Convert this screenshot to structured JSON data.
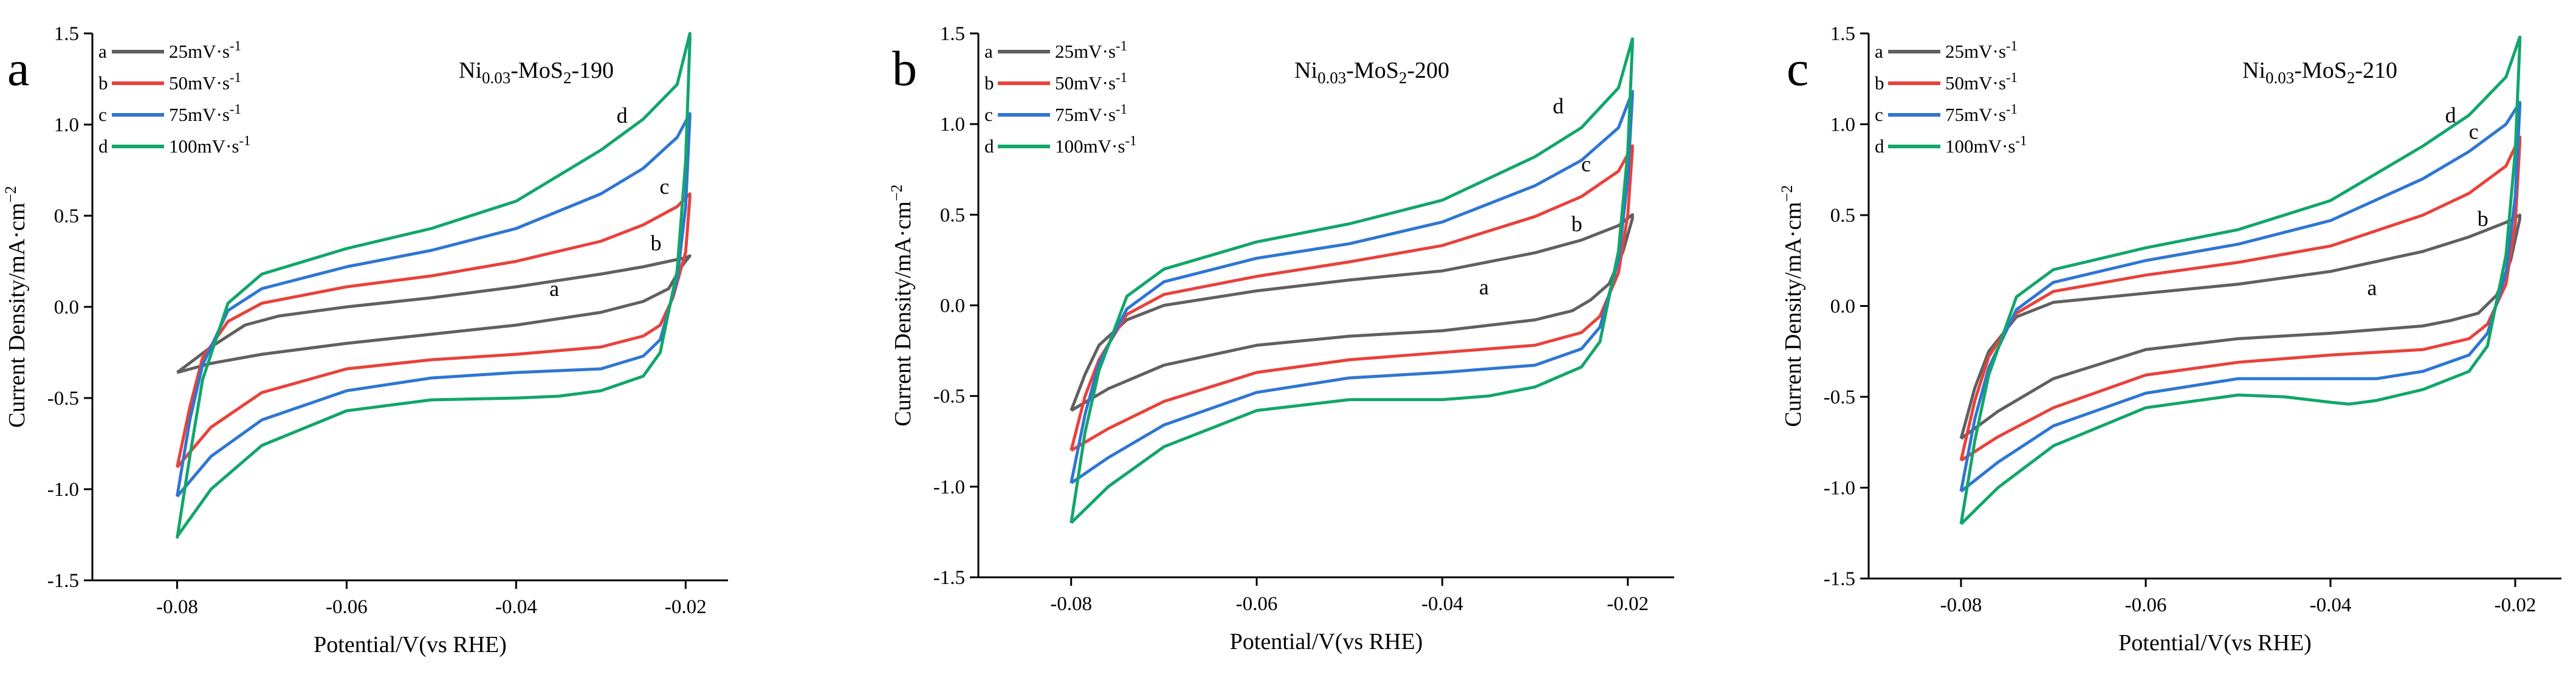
{
  "chart_data": [
    {
      "panel": "a",
      "type": "line",
      "title": {
        "main": "Ni",
        "sub": "0.03",
        "mid": "-MoS",
        "sub2": "2",
        "tail": "-190"
      },
      "xlabel": "Potential/V(vs RHE)",
      "ylabel": "Current Density/mA·cm",
      "ylabel_sup": "−2",
      "xlim": [
        -0.09,
        -0.015
      ],
      "ylim": [
        -1.5,
        1.5
      ],
      "xticks": [
        -0.08,
        -0.06,
        -0.04,
        -0.02
      ],
      "xtick_labels": [
        "-0.08",
        "-0.06",
        "-0.04",
        "-0.02"
      ],
      "yticks": [
        -1.5,
        -1.0,
        -0.5,
        0.0,
        0.5,
        1.0,
        1.5
      ],
      "ytick_labels": [
        "-1.5",
        "-1.0",
        "-0.5",
        "0.0",
        "0.5",
        "1.0",
        "1.5"
      ],
      "legend": {
        "position": "top-left"
      },
      "series": [
        {
          "name": "25mV·s",
          "sup": "-1",
          "letter": "a",
          "color": "#606060",
          "top": [
            -0.08,
            -0.36,
            -0.078,
            -0.29,
            -0.076,
            -0.22,
            -0.072,
            -0.1,
            -0.068,
            -0.05,
            -0.06,
            0.0,
            -0.05,
            0.05,
            -0.04,
            0.11,
            -0.03,
            0.18,
            -0.025,
            0.22,
            -0.02,
            0.27
          ],
          "bottom": [
            -0.0195,
            0.28,
            -0.0205,
            0.22,
            -0.022,
            0.1,
            -0.025,
            0.03,
            -0.03,
            -0.03,
            -0.04,
            -0.1,
            -0.05,
            -0.15,
            -0.06,
            -0.2,
            -0.07,
            -0.26,
            -0.076,
            -0.31,
            -0.08,
            -0.36
          ],
          "label_at": [
            -0.0355,
            0.1
          ]
        },
        {
          "name": "50mV·s",
          "sup": "-1",
          "letter": "b",
          "color": "#e8423c",
          "top": [
            -0.08,
            -0.88,
            -0.0785,
            -0.55,
            -0.077,
            -0.28,
            -0.074,
            -0.08,
            -0.07,
            0.02,
            -0.06,
            0.11,
            -0.05,
            0.17,
            -0.04,
            0.25,
            -0.03,
            0.36,
            -0.025,
            0.45,
            -0.021,
            0.55,
            -0.0195,
            0.62
          ],
          "bottom": [
            -0.0195,
            0.6,
            -0.02,
            0.3,
            -0.0215,
            0.05,
            -0.023,
            -0.1,
            -0.025,
            -0.16,
            -0.03,
            -0.22,
            -0.04,
            -0.26,
            -0.05,
            -0.29,
            -0.06,
            -0.34,
            -0.07,
            -0.47,
            -0.076,
            -0.66,
            -0.08,
            -0.88
          ],
          "label_at": [
            -0.0235,
            0.35
          ]
        },
        {
          "name": "75mV·s",
          "sup": "-1",
          "letter": "c",
          "color": "#2f76d2",
          "top": [
            -0.08,
            -1.04,
            -0.0785,
            -0.62,
            -0.077,
            -0.32,
            -0.074,
            -0.02,
            -0.07,
            0.1,
            -0.06,
            0.22,
            -0.05,
            0.31,
            -0.04,
            0.43,
            -0.03,
            0.62,
            -0.025,
            0.76,
            -0.021,
            0.93,
            -0.0195,
            1.06
          ],
          "bottom": [
            -0.0195,
            1.04,
            -0.02,
            0.55,
            -0.021,
            0.15,
            -0.023,
            -0.18,
            -0.025,
            -0.27,
            -0.03,
            -0.34,
            -0.04,
            -0.36,
            -0.05,
            -0.39,
            -0.06,
            -0.46,
            -0.07,
            -0.62,
            -0.076,
            -0.82,
            -0.08,
            -1.04
          ],
          "label_at": [
            -0.0225,
            0.66
          ]
        },
        {
          "name": "100mV·s",
          "sup": "-1",
          "letter": "d",
          "color": "#12a66a",
          "top": [
            -0.08,
            -1.27,
            -0.0785,
            -0.82,
            -0.077,
            -0.4,
            -0.074,
            0.02,
            -0.07,
            0.18,
            -0.06,
            0.32,
            -0.05,
            0.43,
            -0.04,
            0.58,
            -0.03,
            0.86,
            -0.025,
            1.03,
            -0.021,
            1.22,
            -0.0195,
            1.5
          ],
          "bottom": [
            -0.0195,
            1.46,
            -0.02,
            0.8,
            -0.021,
            0.2,
            -0.023,
            -0.25,
            -0.025,
            -0.38,
            -0.03,
            -0.46,
            -0.035,
            -0.49,
            -0.04,
            -0.5,
            -0.05,
            -0.51,
            -0.06,
            -0.57,
            -0.07,
            -0.76,
            -0.076,
            -1.0,
            -0.08,
            -1.26
          ],
          "label_at": [
            -0.0275,
            1.05
          ]
        }
      ]
    },
    {
      "panel": "b",
      "type": "line",
      "title": {
        "main": "Ni",
        "sub": "0.03",
        "mid": "-MoS",
        "sub2": "2",
        "tail": "-200"
      },
      "xlabel": "Potential/V(vs RHE)",
      "ylabel": "Current Density/mA·cm",
      "ylabel_sup": "−2",
      "xlim": [
        -0.09,
        -0.015
      ],
      "ylim": [
        -1.5,
        1.5
      ],
      "xticks": [
        -0.08,
        -0.06,
        -0.04,
        -0.02
      ],
      "xtick_labels": [
        "-0.08",
        "-0.06",
        "-0.04",
        "-0.02"
      ],
      "yticks": [
        -1.5,
        -1.0,
        -0.5,
        0.0,
        0.5,
        1.0,
        1.5
      ],
      "ytick_labels": [
        "-1.5",
        "-1.0",
        "-0.5",
        "0.0",
        "0.5",
        "1.0",
        "1.5"
      ],
      "legend": {
        "position": "top-left"
      },
      "series": [
        {
          "name": "25mV·s",
          "sup": "-1",
          "letter": "a",
          "color": "#606060",
          "top": [
            -0.08,
            -0.58,
            -0.0785,
            -0.38,
            -0.077,
            -0.22,
            -0.074,
            -0.08,
            -0.07,
            0.0,
            -0.06,
            0.08,
            -0.05,
            0.14,
            -0.04,
            0.19,
            -0.03,
            0.29,
            -0.025,
            0.36,
            -0.021,
            0.44,
            -0.0195,
            0.5
          ],
          "bottom": [
            -0.0195,
            0.48,
            -0.0205,
            0.3,
            -0.022,
            0.12,
            -0.024,
            0.03,
            -0.026,
            -0.03,
            -0.03,
            -0.08,
            -0.04,
            -0.14,
            -0.05,
            -0.17,
            -0.06,
            -0.22,
            -0.07,
            -0.33,
            -0.076,
            -0.46,
            -0.08,
            -0.58
          ],
          "label_at": [
            -0.0355,
            0.1
          ]
        },
        {
          "name": "50mV·s",
          "sup": "-1",
          "letter": "b",
          "color": "#e8423c",
          "top": [
            -0.08,
            -0.8,
            -0.0785,
            -0.5,
            -0.077,
            -0.3,
            -0.074,
            -0.05,
            -0.07,
            0.06,
            -0.06,
            0.16,
            -0.05,
            0.24,
            -0.04,
            0.33,
            -0.03,
            0.49,
            -0.025,
            0.6,
            -0.021,
            0.74,
            -0.0195,
            0.88
          ],
          "bottom": [
            -0.0195,
            0.86,
            -0.02,
            0.5,
            -0.021,
            0.18,
            -0.023,
            -0.06,
            -0.025,
            -0.15,
            -0.03,
            -0.22,
            -0.04,
            -0.26,
            -0.05,
            -0.3,
            -0.06,
            -0.37,
            -0.07,
            -0.53,
            -0.076,
            -0.68,
            -0.08,
            -0.8
          ],
          "label_at": [
            -0.0255,
            0.45
          ]
        },
        {
          "name": "75mV·s",
          "sup": "-1",
          "letter": "c",
          "color": "#2f76d2",
          "top": [
            -0.08,
            -0.98,
            -0.0785,
            -0.6,
            -0.077,
            -0.32,
            -0.074,
            -0.02,
            -0.07,
            0.13,
            -0.06,
            0.26,
            -0.05,
            0.34,
            -0.04,
            0.46,
            -0.03,
            0.66,
            -0.025,
            0.8,
            -0.021,
            0.98,
            -0.0195,
            1.18
          ],
          "bottom": [
            -0.0195,
            1.16,
            -0.02,
            0.7,
            -0.021,
            0.25,
            -0.023,
            -0.12,
            -0.025,
            -0.24,
            -0.03,
            -0.33,
            -0.04,
            -0.37,
            -0.05,
            -0.4,
            -0.06,
            -0.48,
            -0.07,
            -0.66,
            -0.076,
            -0.84,
            -0.08,
            -0.98
          ],
          "label_at": [
            -0.0245,
            0.78
          ]
        },
        {
          "name": "100mV·s",
          "sup": "-1",
          "letter": "d",
          "color": "#12a66a",
          "top": [
            -0.08,
            -1.2,
            -0.0785,
            -0.7,
            -0.077,
            -0.36,
            -0.074,
            0.05,
            -0.07,
            0.2,
            -0.06,
            0.35,
            -0.05,
            0.45,
            -0.04,
            0.58,
            -0.03,
            0.82,
            -0.025,
            0.98,
            -0.021,
            1.2,
            -0.0195,
            1.47
          ],
          "bottom": [
            -0.0195,
            1.44,
            -0.02,
            0.85,
            -0.021,
            0.3,
            -0.023,
            -0.2,
            -0.025,
            -0.34,
            -0.03,
            -0.45,
            -0.035,
            -0.5,
            -0.04,
            -0.52,
            -0.045,
            -0.52,
            -0.05,
            -0.52,
            -0.06,
            -0.58,
            -0.07,
            -0.78,
            -0.076,
            -1.0,
            -0.08,
            -1.2
          ],
          "label_at": [
            -0.0275,
            1.1
          ]
        }
      ]
    },
    {
      "panel": "c",
      "type": "line",
      "title": {
        "main": "Ni",
        "sub": "0.03",
        "mid": "-MoS",
        "sub2": "2",
        "tail": "-210"
      },
      "xlabel": "Potential/V(vs RHE)",
      "ylabel": "Current Density/mA·cm",
      "ylabel_sup": "−2",
      "xlim": [
        -0.09,
        -0.015
      ],
      "ylim": [
        -1.5,
        1.5
      ],
      "xticks": [
        -0.08,
        -0.06,
        -0.04,
        -0.02
      ],
      "xtick_labels": [
        "-0.08",
        "-0.06",
        "-0.04",
        "-0.02"
      ],
      "yticks": [
        -1.5,
        -1.0,
        -0.5,
        0.0,
        0.5,
        1.0,
        1.5
      ],
      "ytick_labels": [
        "-1.5",
        "-1.0",
        "-0.5",
        "0.0",
        "0.5",
        "1.0",
        "1.5"
      ],
      "legend": {
        "position": "top-left"
      },
      "series": [
        {
          "name": "25mV·s",
          "sup": "-1",
          "letter": "a",
          "color": "#606060",
          "top": [
            -0.08,
            -0.73,
            -0.0785,
            -0.45,
            -0.077,
            -0.25,
            -0.074,
            -0.06,
            -0.07,
            0.02,
            -0.06,
            0.07,
            -0.05,
            0.12,
            -0.04,
            0.19,
            -0.03,
            0.3,
            -0.025,
            0.38,
            -0.021,
            0.46,
            -0.0195,
            0.5
          ],
          "bottom": [
            -0.0195,
            0.48,
            -0.0205,
            0.25,
            -0.022,
            0.06,
            -0.024,
            -0.04,
            -0.027,
            -0.08,
            -0.03,
            -0.11,
            -0.04,
            -0.15,
            -0.05,
            -0.18,
            -0.06,
            -0.24,
            -0.07,
            -0.4,
            -0.076,
            -0.58,
            -0.08,
            -0.73
          ],
          "label_at": [
            -0.0355,
            0.1
          ]
        },
        {
          "name": "50mV·s",
          "sup": "-1",
          "letter": "b",
          "color": "#e8423c",
          "top": [
            -0.08,
            -0.85,
            -0.0785,
            -0.52,
            -0.077,
            -0.28,
            -0.074,
            -0.04,
            -0.07,
            0.08,
            -0.06,
            0.17,
            -0.05,
            0.24,
            -0.04,
            0.33,
            -0.03,
            0.5,
            -0.025,
            0.62,
            -0.021,
            0.77,
            -0.0195,
            0.93
          ],
          "bottom": [
            -0.0195,
            0.9,
            -0.02,
            0.45,
            -0.021,
            0.12,
            -0.023,
            -0.1,
            -0.025,
            -0.18,
            -0.03,
            -0.24,
            -0.04,
            -0.27,
            -0.05,
            -0.31,
            -0.06,
            -0.38,
            -0.07,
            -0.56,
            -0.076,
            -0.72,
            -0.08,
            -0.85
          ],
          "label_at": [
            -0.0235,
            0.48
          ]
        },
        {
          "name": "75mV·s",
          "sup": "-1",
          "letter": "c",
          "color": "#2f76d2",
          "top": [
            -0.08,
            -1.02,
            -0.0785,
            -0.62,
            -0.077,
            -0.34,
            -0.074,
            -0.02,
            -0.07,
            0.13,
            -0.06,
            0.25,
            -0.05,
            0.34,
            -0.04,
            0.47,
            -0.03,
            0.7,
            -0.025,
            0.85,
            -0.021,
            1.0,
            -0.0195,
            1.12
          ],
          "bottom": [
            -0.0195,
            1.1,
            -0.02,
            0.6,
            -0.021,
            0.18,
            -0.023,
            -0.15,
            -0.025,
            -0.27,
            -0.03,
            -0.36,
            -0.035,
            -0.4,
            -0.04,
            -0.4,
            -0.05,
            -0.4,
            -0.06,
            -0.48,
            -0.07,
            -0.66,
            -0.076,
            -0.86,
            -0.08,
            -1.02
          ],
          "label_at": [
            -0.0245,
            0.96
          ]
        },
        {
          "name": "100mV·s",
          "sup": "-1",
          "letter": "d",
          "color": "#12a66a",
          "top": [
            -0.08,
            -1.2,
            -0.0785,
            -0.74,
            -0.077,
            -0.38,
            -0.074,
            0.05,
            -0.07,
            0.2,
            -0.06,
            0.32,
            -0.05,
            0.42,
            -0.04,
            0.58,
            -0.03,
            0.88,
            -0.025,
            1.05,
            -0.021,
            1.26,
            -0.0195,
            1.48
          ],
          "bottom": [
            -0.0195,
            1.45,
            -0.02,
            0.85,
            -0.021,
            0.28,
            -0.023,
            -0.22,
            -0.025,
            -0.36,
            -0.03,
            -0.46,
            -0.035,
            -0.52,
            -0.038,
            -0.54,
            -0.04,
            -0.53,
            -0.045,
            -0.5,
            -0.05,
            -0.49,
            -0.06,
            -0.56,
            -0.07,
            -0.77,
            -0.076,
            -1.0,
            -0.08,
            -1.2
          ],
          "label_at": [
            -0.027,
            1.05
          ]
        }
      ]
    }
  ]
}
